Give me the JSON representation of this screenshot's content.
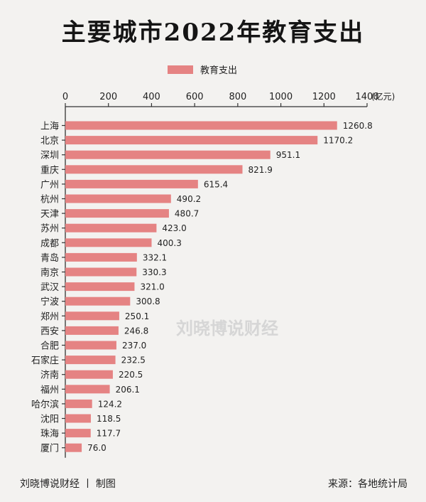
{
  "title": "主要城市2022年教育支出",
  "watermark": "刘晓博说财经",
  "footer": {
    "credit": "刘晓博说财经 丨 制图",
    "source": "来源：各地统计局"
  },
  "colors": {
    "bar": "#e58383",
    "axis": "#333333",
    "background": "#f3f2f0",
    "watermark": "#d6d6d6"
  },
  "chart_data": {
    "type": "bar",
    "orientation": "horizontal",
    "title": "主要城市2022年教育支出",
    "legend": {
      "position": "top",
      "entries": [
        "教育支出"
      ]
    },
    "x_axis": {
      "unit": "(亿元)",
      "range": [
        0,
        1400
      ],
      "ticks": [
        "0",
        "200",
        "400",
        "600",
        "800",
        "1000",
        "1200",
        "1400"
      ],
      "position": "top"
    },
    "grid": false,
    "categories": [
      "上海",
      "北京",
      "深圳",
      "重庆",
      "广州",
      "杭州",
      "天津",
      "苏州",
      "成都",
      "青岛",
      "南京",
      "武汉",
      "宁波",
      "郑州",
      "西安",
      "合肥",
      "石家庄",
      "济南",
      "福州",
      "哈尔滨",
      "沈阳",
      "珠海",
      "厦门"
    ],
    "series": [
      {
        "name": "教育支出",
        "values": [
          1260.8,
          1170.2,
          951.1,
          821.9,
          615.4,
          490.2,
          480.7,
          423.0,
          400.3,
          332.1,
          330.3,
          321.0,
          300.8,
          250.1,
          246.8,
          237.0,
          232.5,
          220.5,
          206.1,
          124.2,
          118.5,
          117.7,
          76.0
        ],
        "labels": [
          "1260.8",
          "1170.2",
          "951.1",
          "821.9",
          "615.4",
          "490.2",
          "480.7",
          "423.0",
          "400.3",
          "332.1",
          "330.3",
          "321.0",
          "300.8",
          "250.1",
          "246.8",
          "237.0",
          "232.5",
          "220.5",
          "206.1",
          "124.2",
          "118.5",
          "117.7",
          "76.0"
        ]
      }
    ]
  }
}
